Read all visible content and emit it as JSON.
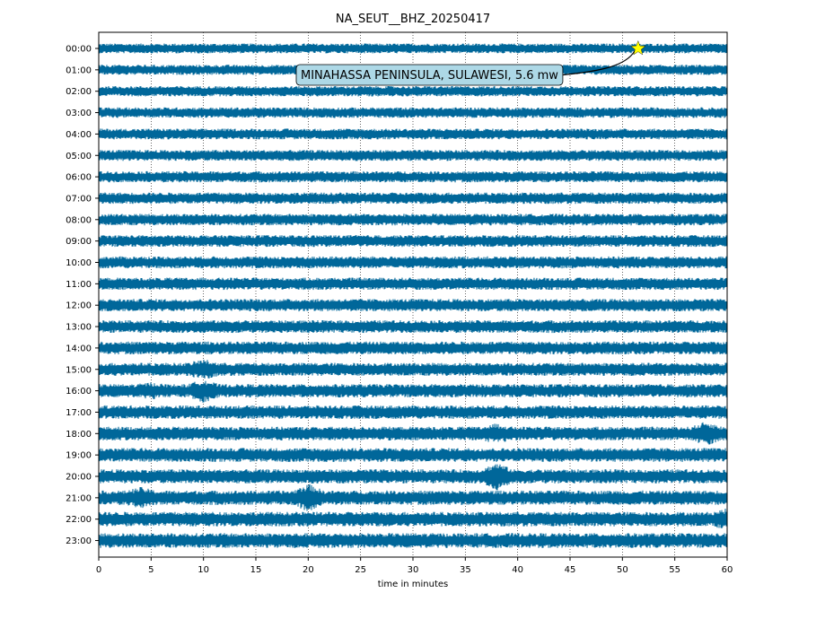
{
  "chart_data": {
    "type": "line",
    "title": "NA_SEUT__BHZ_20250417",
    "xlabel": "time in minutes",
    "xlim": [
      0,
      60
    ],
    "x_ticks": [
      "0",
      "5",
      "10",
      "15",
      "20",
      "25",
      "30",
      "35",
      "40",
      "45",
      "50",
      "55",
      "60"
    ],
    "x_tick_values": [
      0,
      5,
      10,
      15,
      20,
      25,
      30,
      35,
      40,
      45,
      50,
      55,
      60
    ],
    "rows": [
      "00:00",
      "01:00",
      "02:00",
      "03:00",
      "04:00",
      "05:00",
      "06:00",
      "07:00",
      "08:00",
      "09:00",
      "10:00",
      "11:00",
      "12:00",
      "13:00",
      "14:00",
      "15:00",
      "16:00",
      "17:00",
      "18:00",
      "19:00",
      "20:00",
      "21:00",
      "22:00",
      "23:00"
    ],
    "grid": "vertical dotted at x ticks",
    "trace_color": "#00679a",
    "annotation": {
      "text": "MINAHASSA PENINSULA, SULAWESI, 5.6 mw",
      "hour_row": "00:00",
      "minute": 51.5,
      "marker": "star",
      "marker_color": "#ffff00",
      "box_color": "#add8e6"
    }
  }
}
